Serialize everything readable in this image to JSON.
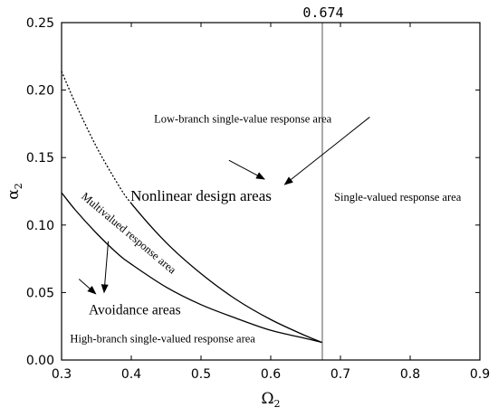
{
  "chart_data": {
    "type": "line",
    "xlabel": "Ω",
    "xlabel_sub": "2",
    "ylabel": "α",
    "ylabel_sub": "2",
    "xlim": [
      0.3,
      0.9
    ],
    "ylim": [
      0.0,
      0.25
    ],
    "x_ticks": [
      0.3,
      0.4,
      0.5,
      0.6,
      0.7,
      0.8,
      0.9
    ],
    "x_tick_labels": [
      "0.3",
      "0.4",
      "0.5",
      "0.6",
      "0.7",
      "0.8",
      "0.9"
    ],
    "y_ticks": [
      0.0,
      0.05,
      0.1,
      0.15,
      0.2,
      0.25
    ],
    "y_tick_labels": [
      "0.00",
      "0.05",
      "0.10",
      "0.15",
      "0.20",
      "0.25"
    ],
    "grid": false,
    "vertical_line": {
      "x": 0.674,
      "label": "0.674"
    },
    "series": [
      {
        "style": "dotted",
        "x": [
          0.3,
          0.32,
          0.35,
          0.38,
          0.4,
          0.45,
          0.5,
          0.55,
          0.6,
          0.65,
          0.674
        ],
        "y": [
          0.214,
          0.19,
          0.158,
          0.131,
          0.116,
          0.087,
          0.064,
          0.045,
          0.03,
          0.018,
          0.013
        ]
      },
      {
        "style": "solid",
        "x": [
          0.3,
          0.32,
          0.35,
          0.38,
          0.4,
          0.45,
          0.5,
          0.55,
          0.6,
          0.65,
          0.674
        ],
        "y": [
          0.124,
          0.111,
          0.094,
          0.079,
          0.071,
          0.054,
          0.041,
          0.031,
          0.022,
          0.016,
          0.013
        ]
      }
    ],
    "annotations": [
      {
        "text": "Low-branch single-value response area",
        "x": 0.56,
        "y": 0.176,
        "size": "small",
        "rotate": 0
      },
      {
        "text": "Nonlinear design areas",
        "x": 0.5,
        "y": 0.118,
        "size": "big",
        "rotate": 0
      },
      {
        "text": "Single-valued response area",
        "x": 0.782,
        "y": 0.118,
        "size": "small",
        "rotate": 0
      },
      {
        "text": "Multivalued response area",
        "x": 0.393,
        "y": 0.092,
        "size": "small",
        "rotate": 40
      },
      {
        "text": "Avoidance areas",
        "x": 0.405,
        "y": 0.034,
        "size": "med",
        "rotate": 0
      },
      {
        "text": "High-branch single-valued response area",
        "x": 0.445,
        "y": 0.013,
        "size": "small",
        "rotate": 0
      }
    ],
    "arrows": [
      {
        "from": [
          0.742,
          0.18
        ],
        "to": [
          0.62,
          0.13
        ]
      },
      {
        "from": [
          0.54,
          0.148
        ],
        "to": [
          0.591,
          0.134
        ]
      },
      {
        "from": [
          0.367,
          0.088
        ],
        "to": [
          0.361,
          0.05
        ]
      },
      {
        "from": [
          0.325,
          0.06
        ],
        "to": [
          0.349,
          0.049
        ]
      }
    ]
  }
}
